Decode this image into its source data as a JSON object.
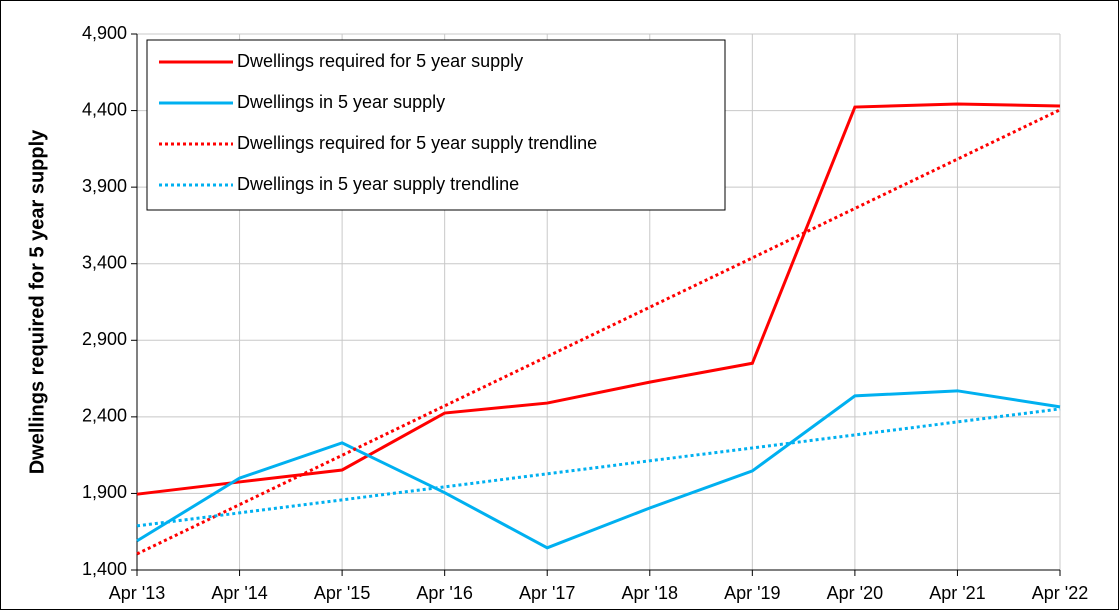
{
  "chart_data": {
    "type": "line",
    "y_label": "Dwellings required for 5 year supply",
    "categories": [
      "Apr '13",
      "Apr '14",
      "Apr '15",
      "Apr '16",
      "Apr '17",
      "Apr '18",
      "Apr '19",
      "Apr '20",
      "Apr '21",
      "Apr '22"
    ],
    "series": [
      {
        "name": "Dwellings required for 5 year supply",
        "color": "#ff0000",
        "style": "solid",
        "values": [
          1895,
          1975,
          2053,
          2425,
          2490,
          2627,
          2750,
          4423,
          4443,
          4430
        ]
      },
      {
        "name": "Dwellings in 5 year supply",
        "color": "#00b0f0",
        "style": "solid",
        "values": [
          1590,
          2000,
          2230,
          1905,
          1545,
          1805,
          2047,
          2537,
          2570,
          2465
        ]
      },
      {
        "name": "Dwellings required for 5 year supply trendline",
        "color": "#ff0000",
        "style": "dotted",
        "values": [
          1505,
          1827,
          2149,
          2472,
          2794,
          3116,
          3438,
          3761,
          4083,
          4405
        ]
      },
      {
        "name": "Dwellings in 5 year supply trendline",
        "color": "#00b0f0",
        "style": "dotted",
        "values": [
          1688,
          1773,
          1858,
          1943,
          2028,
          2113,
          2197,
          2282,
          2367,
          2452
        ]
      }
    ],
    "ylim": [
      1400,
      4900
    ],
    "yticks": [
      {
        "value": 1400,
        "label": "1,400"
      },
      {
        "value": 1900,
        "label": "1,900"
      },
      {
        "value": 2400,
        "label": "2,400"
      },
      {
        "value": 2900,
        "label": "2,900"
      },
      {
        "value": 3400,
        "label": "3,400"
      },
      {
        "value": 3900,
        "label": "3,900"
      },
      {
        "value": 4400,
        "label": "4,400"
      },
      {
        "value": 4900,
        "label": "4,900"
      }
    ],
    "grid": true,
    "legend": "top-left"
  }
}
